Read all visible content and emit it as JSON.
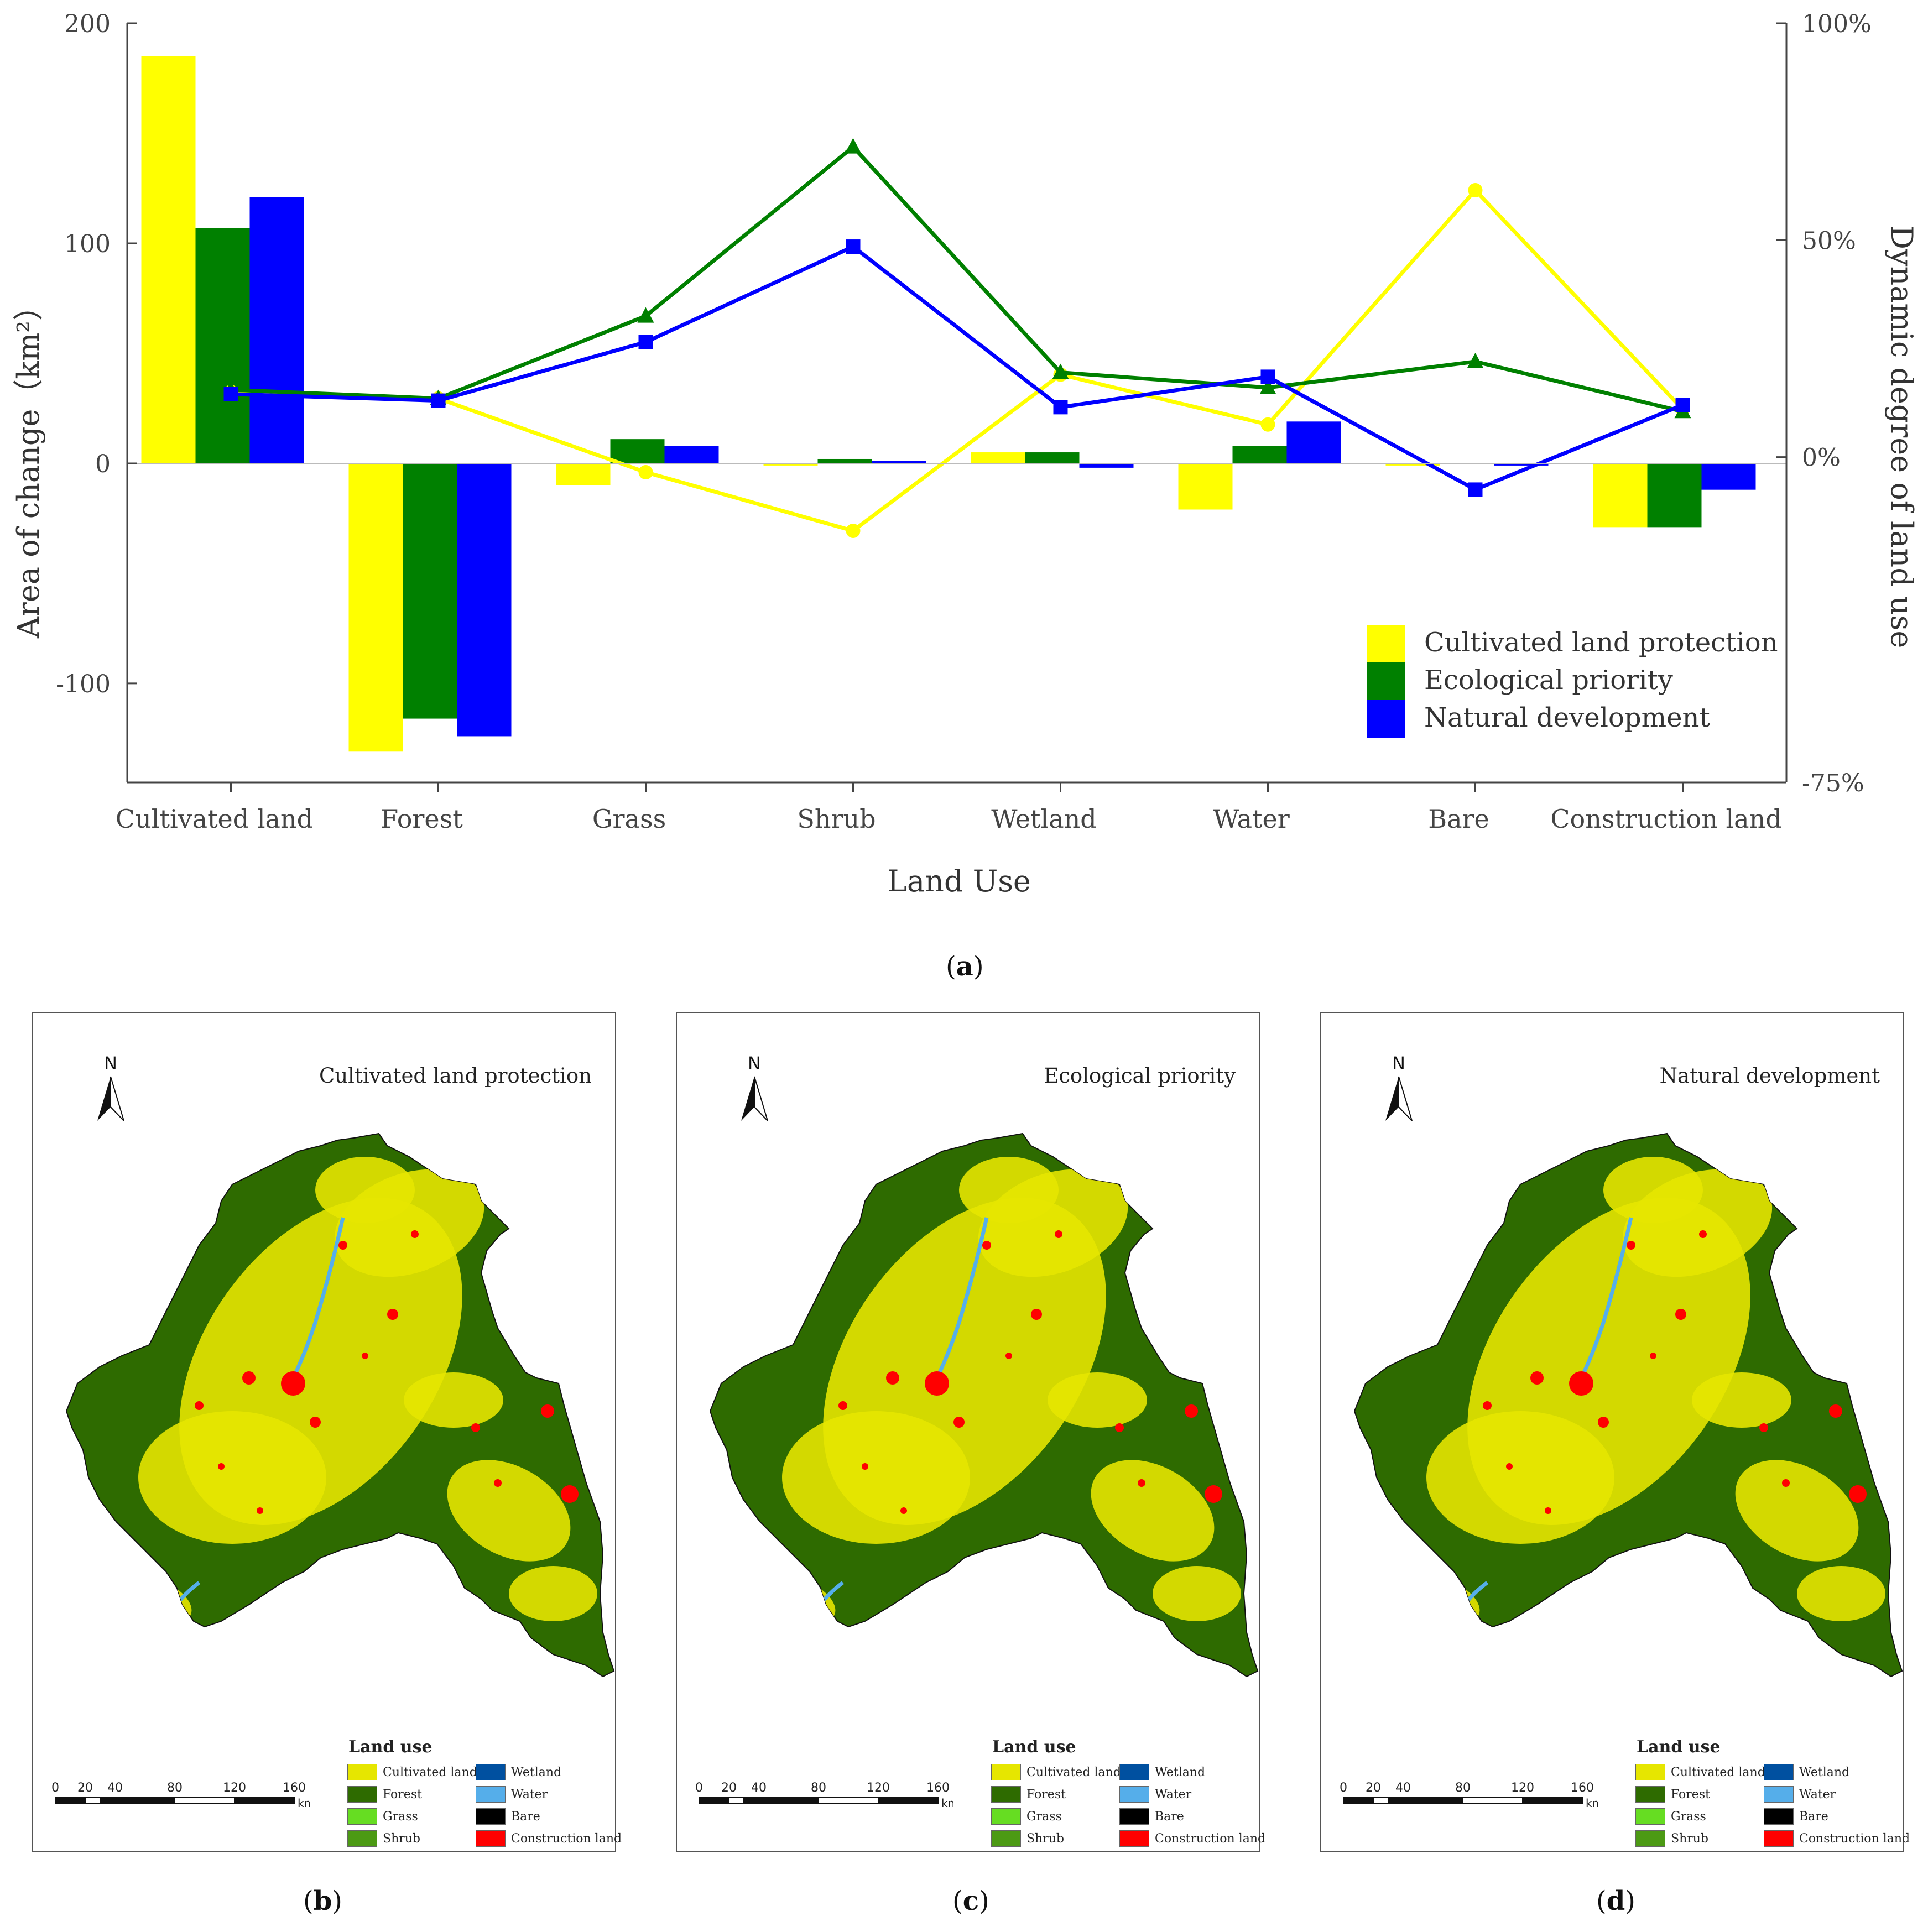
{
  "chart_data": {
    "type": "bar",
    "title": "",
    "xlabel": "Land Use",
    "ylabel": "Area of change（km²）",
    "y2label": "Dynamic degree of land use",
    "categories": [
      "Cultivated land",
      "Forest",
      "Grass",
      "Shrub",
      "Wetland",
      "Water",
      "Bare",
      "Construction land"
    ],
    "ylim": [
      -145,
      200
    ],
    "yticks": [
      200,
      100,
      0,
      -100
    ],
    "ytick_labels": [
      "200",
      "100",
      "0",
      "-100"
    ],
    "y2lim": [
      -75,
      100
    ],
    "y2ticks": [
      100,
      50,
      0,
      -75
    ],
    "y2tick_labels": [
      "100%",
      "50%",
      "0%",
      "-75%"
    ],
    "series": [
      {
        "name": "Cultivated land protection",
        "color": "#FFFF00",
        "marker": "circle",
        "values": [
          185,
          -131,
          -10,
          -1,
          5,
          -21,
          -1,
          -29
        ],
        "line_values": [
          15,
          13.5,
          -3.5,
          -17,
          19,
          7.5,
          61.5,
          11
        ]
      },
      {
        "name": "Ecological priority",
        "color": "#008000",
        "marker": "triangle",
        "values": [
          107,
          -116,
          11,
          2,
          5,
          8,
          0,
          -29
        ],
        "line_values": [
          15.5,
          13.5,
          32.5,
          71.5,
          19.5,
          16,
          22,
          10.5
        ]
      },
      {
        "name": "Natural development",
        "color": "#0000FF",
        "marker": "square",
        "values": [
          121,
          -124,
          8,
          1,
          -2,
          19,
          -1,
          -12
        ],
        "line_values": [
          14.5,
          13,
          26.5,
          48.5,
          11.5,
          18.5,
          -7.5,
          12
        ]
      }
    ],
    "legend_position": "bottom-right",
    "caption": "a"
  },
  "maps": [
    {
      "caption": "b",
      "title": "Cultivated land protection"
    },
    {
      "caption": "c",
      "title": "Ecological priority"
    },
    {
      "caption": "d",
      "title": "Natural development"
    }
  ],
  "map_common": {
    "north_label": "N",
    "legend_title": "Land use",
    "legend_items": [
      {
        "label": "Cultivated land",
        "color": "#E6E600"
      },
      {
        "label": "Forest",
        "color": "#2E6B00"
      },
      {
        "label": "Grass",
        "color": "#66DD22"
      },
      {
        "label": "Shrub",
        "color": "#4C9A14"
      },
      {
        "label": "Wetland",
        "color": "#0050A0"
      },
      {
        "label": "Water",
        "color": "#55AEEA"
      },
      {
        "label": "Bare",
        "color": "#000000"
      },
      {
        "label": "Construction land",
        "color": "#FF0000"
      }
    ],
    "scale_ticks": [
      "0",
      "20",
      "40",
      "80",
      "120",
      "160"
    ],
    "scale_unit": "km"
  }
}
